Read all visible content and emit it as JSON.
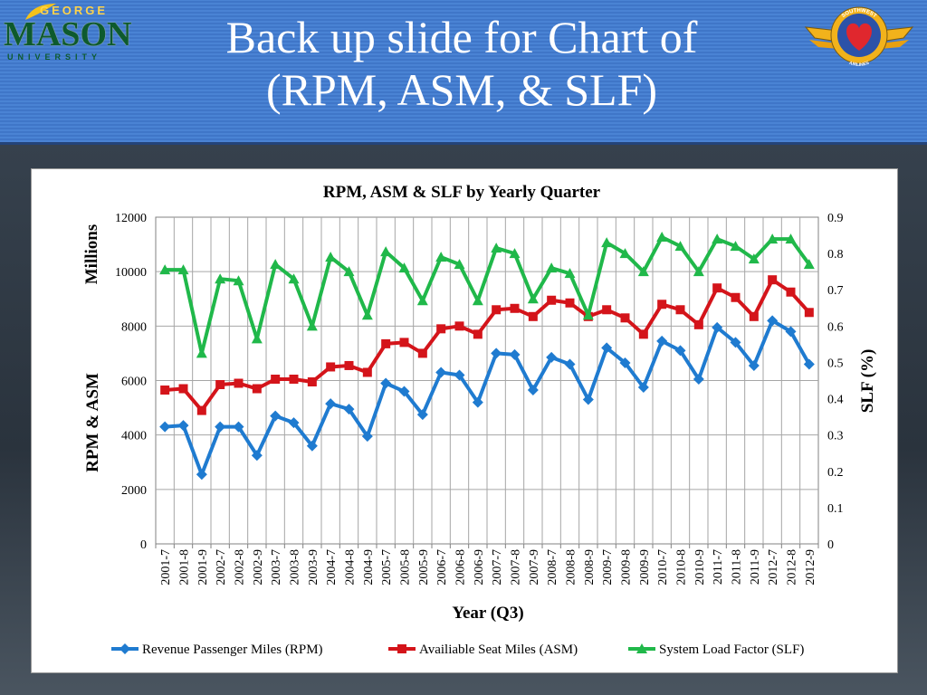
{
  "slide": {
    "title_line1": "Back up slide for Chart of",
    "title_line2": "(RPM, ASM, & SLF)"
  },
  "logos": {
    "gmu_george": "GEORGE",
    "gmu_mason": "MASON",
    "gmu_university": "UNIVERSITY",
    "southwest_top": "SOUTHWEST",
    "southwest_bottom": "AIRLINES"
  },
  "colors": {
    "header_blue": "#4a83d4",
    "rpm": "#1f7bd0",
    "asm": "#d4141a",
    "slf": "#20b84a"
  },
  "chart_data": {
    "type": "line",
    "title": "RPM, ASM & SLF by Yearly Quarter",
    "xlabel": "Year (Q3)",
    "ylabel": "RPM & ASM",
    "ylabel_unit": "Millions",
    "y2label": "SLF (%)",
    "ylim": [
      0,
      12000
    ],
    "yticks": [
      0,
      2000,
      4000,
      6000,
      8000,
      10000,
      12000
    ],
    "y2lim": [
      0,
      0.9
    ],
    "y2ticks": [
      0,
      0.1,
      0.2,
      0.3,
      0.4,
      0.5,
      0.6,
      0.7,
      0.8,
      0.9
    ],
    "grid": true,
    "legend_position": "bottom",
    "categories": [
      "2001-7",
      "2001-8",
      "2001-9",
      "2002-7",
      "2002-8",
      "2002-9",
      "2003-7",
      "2003-8",
      "2003-9",
      "2004-7",
      "2004-8",
      "2004-9",
      "2005-7",
      "2005-8",
      "2005-9",
      "2006-7",
      "2006-8",
      "2006-9",
      "2007-7",
      "2007-8",
      "2007-9",
      "2008-7",
      "2008-8",
      "2008-9",
      "2009-7",
      "2009-8",
      "2009-9",
      "2010-7",
      "2010-8",
      "2010-9",
      "2011-7",
      "2011-8",
      "2011-9",
      "2012-7",
      "2012-8",
      "2012-9"
    ],
    "series": [
      {
        "name": "Revenue Passenger Miles (RPM)",
        "axis": "left",
        "marker": "diamond",
        "values": [
          4300,
          4350,
          2550,
          4300,
          4300,
          3250,
          4700,
          4450,
          3600,
          5150,
          4950,
          3950,
          5900,
          5600,
          4750,
          6300,
          6200,
          5200,
          7000,
          6950,
          5650,
          6850,
          6600,
          5300,
          7200,
          6650,
          5750,
          7450,
          7100,
          6050,
          7950,
          7400,
          6550,
          8200,
          7800,
          6600
        ]
      },
      {
        "name": "Availiable Seat Miles (ASM)",
        "axis": "left",
        "marker": "square",
        "values": [
          5650,
          5700,
          4900,
          5850,
          5900,
          5700,
          6050,
          6050,
          5950,
          6500,
          6550,
          6300,
          7350,
          7400,
          7000,
          7900,
          8000,
          7700,
          8600,
          8650,
          8350,
          8950,
          8850,
          8350,
          8600,
          8300,
          7700,
          8800,
          8600,
          8050,
          9400,
          9050,
          8350,
          9700,
          9250,
          8500
        ]
      },
      {
        "name": "System Load Factor (SLF)",
        "axis": "right",
        "marker": "triangle",
        "values": [
          0.755,
          0.755,
          0.525,
          0.73,
          0.725,
          0.565,
          0.77,
          0.73,
          0.6,
          0.79,
          0.75,
          0.63,
          0.805,
          0.76,
          0.67,
          0.79,
          0.77,
          0.67,
          0.815,
          0.8,
          0.675,
          0.76,
          0.745,
          0.63,
          0.83,
          0.8,
          0.75,
          0.845,
          0.82,
          0.75,
          0.84,
          0.82,
          0.785,
          0.84,
          0.84,
          0.77
        ]
      }
    ]
  }
}
